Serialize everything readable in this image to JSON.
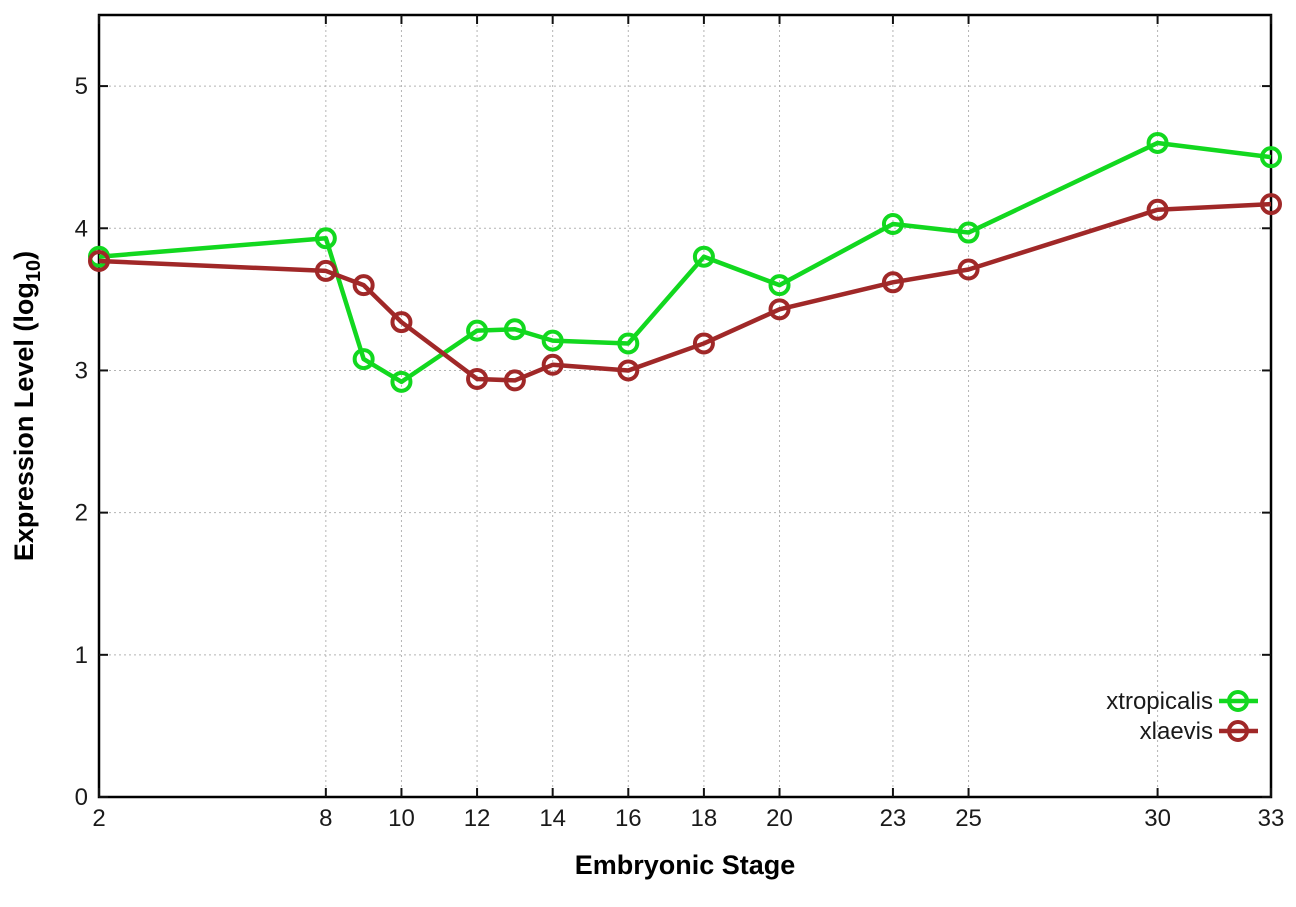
{
  "chart_data": {
    "type": "line",
    "title": "",
    "xlabel": "Embryonic Stage",
    "ylabel": "Expression Level (log10)",
    "ylabel_parts": [
      "Expression Level (log",
      "10",
      ")"
    ],
    "xlim": [
      2,
      33
    ],
    "ylim": [
      0,
      5.5
    ],
    "x_ticks": [
      2,
      8,
      10,
      12,
      14,
      16,
      18,
      20,
      23,
      25,
      30,
      33
    ],
    "y_ticks": [
      0,
      1,
      2,
      3,
      4,
      5
    ],
    "grid": true,
    "legend_position": "inside-bottom-right",
    "x": [
      2,
      8,
      9,
      10,
      12,
      13,
      14,
      16,
      18,
      20,
      23,
      25,
      30,
      33
    ],
    "series": [
      {
        "name": "xtropicalis",
        "color": "#12d81f",
        "marker": "open-circle",
        "values": [
          3.8,
          3.93,
          3.08,
          2.92,
          3.28,
          3.29,
          3.21,
          3.19,
          3.8,
          3.6,
          4.03,
          3.97,
          4.6,
          4.5
        ]
      },
      {
        "name": "xlaevis",
        "color": "#a02828",
        "marker": "open-circle",
        "values": [
          3.77,
          3.7,
          3.6,
          3.34,
          2.94,
          2.93,
          3.04,
          3.0,
          3.19,
          3.43,
          3.62,
          3.71,
          4.13,
          4.17
        ]
      }
    ]
  },
  "colors": {
    "background": "#ffffff",
    "grid": "#b4b4b4",
    "border": "#000000",
    "tick_label": "#1a1a1a",
    "axis_title": "#000000"
  }
}
